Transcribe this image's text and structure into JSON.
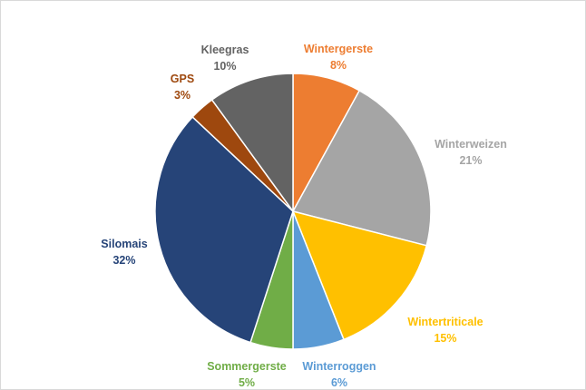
{
  "chart_data": {
    "type": "pie",
    "title": "",
    "start_angle_deg": 0,
    "direction": "clockwise",
    "legend": "none",
    "slices": [
      {
        "label": "Wintergerste",
        "value": 8,
        "percent_label": "8%",
        "color": "#ED7D31"
      },
      {
        "label": "Winterweizen",
        "value": 21,
        "percent_label": "21%",
        "color": "#A5A5A5"
      },
      {
        "label": "Wintertriticale",
        "value": 15,
        "percent_label": "15%",
        "color": "#FFC000"
      },
      {
        "label": "Winterroggen",
        "value": 6,
        "percent_label": "6%",
        "color": "#5B9BD5"
      },
      {
        "label": "Sommergerste",
        "value": 5,
        "percent_label": "5%",
        "color": "#70AD47"
      },
      {
        "label": "Silomais",
        "value": 32,
        "percent_label": "32%",
        "color": "#264478"
      },
      {
        "label": "GPS",
        "value": 3,
        "percent_label": "3%",
        "color": "#9E480E"
      },
      {
        "label": "Kleegras",
        "value": 10,
        "percent_label": "10%",
        "color": "#636363"
      }
    ]
  }
}
